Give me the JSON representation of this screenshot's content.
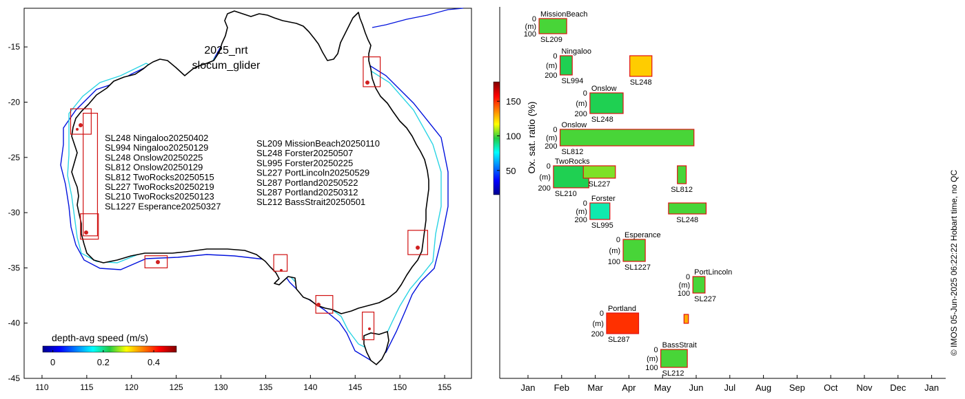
{
  "map": {
    "title_line1": "2025_nrt",
    "title_line2": "slocum_glider",
    "x_ticks": [
      "110",
      "115",
      "120",
      "125",
      "130",
      "135",
      "140",
      "145",
      "150",
      "155"
    ],
    "y_ticks": [
      "-15",
      "-20",
      "-25",
      "-30",
      "-35",
      "-40",
      "-45"
    ],
    "xlim": [
      108,
      158
    ],
    "ylim": [
      -45,
      -11.5
    ],
    "legend_left": [
      "SL248 Ningaloo20250402",
      "SL994 Ningaloo20250129",
      "SL248 Onslow20250225",
      "SL812 Onslow20250129",
      "SL812 TwoRocks20250515",
      "SL227 TwoRocks20250219",
      "SL210 TwoRocks20250123",
      "SL1227 Esperance20250327"
    ],
    "legend_right": [
      "SL209 MissionBeach20250110",
      "SL248 Forster20250507",
      "SL995 Forster20250225",
      "SL227 PortLincoln20250529",
      "SL287 Portland20250522",
      "SL287 Portland20250312",
      "SL212 BassStrait20250501"
    ],
    "colorbar": {
      "label": "depth-avg speed (m/s)",
      "ticks": [
        "0",
        "0.2",
        "0.4"
      ],
      "range": [
        -0.04,
        0.49
      ]
    },
    "deployment_boxes": [
      {
        "site": "Ningaloo",
        "lon": [
          113.2,
          115.5
        ],
        "lat": [
          -22.9,
          -20.6
        ]
      },
      {
        "site": "Onslow/TwoRocks track",
        "lon": [
          114.6,
          116.2
        ],
        "lat": [
          -32.1,
          -21.0
        ]
      },
      {
        "site": "TwoRocks",
        "lon": [
          114.3,
          116.3
        ],
        "lat": [
          -32.4,
          -30.1
        ]
      },
      {
        "site": "Esperance",
        "lon": [
          121.5,
          124.0
        ],
        "lat": [
          -35.0,
          -33.9
        ]
      },
      {
        "site": "PortLincoln",
        "lon": [
          135.9,
          137.4
        ],
        "lat": [
          -35.3,
          -33.8
        ]
      },
      {
        "site": "Portland",
        "lon": [
          140.6,
          142.5
        ],
        "lat": [
          -39.1,
          -37.5
        ]
      },
      {
        "site": "BassStrait",
        "lon": [
          145.8,
          147.1
        ],
        "lat": [
          -41.5,
          -39.0
        ]
      },
      {
        "site": "Forster",
        "lon": [
          150.9,
          153.1
        ],
        "lat": [
          -33.8,
          -31.6
        ]
      },
      {
        "site": "MissionBeach",
        "lon": [
          145.9,
          147.8
        ],
        "lat": [
          -18.6,
          -15.9
        ]
      }
    ]
  },
  "timeline": {
    "months": [
      "Jan",
      "Feb",
      "Mar",
      "Apr",
      "May",
      "Jun",
      "Jul",
      "Aug",
      "Sep",
      "Oct",
      "Nov",
      "Dec",
      "Jan"
    ],
    "colorbar": {
      "label": "Ox. sat. ratio (%)",
      "ticks": [
        "50",
        "100",
        "150"
      ],
      "range": [
        15,
        178
      ]
    },
    "credit": "© IMOS 05-Jun-2025 06:22:22 Hobart time, no QC",
    "panels": [
      {
        "site": "MissionBeach",
        "glider": "SL209",
        "ymax": "100",
        "start_day": 10,
        "end_day": 35,
        "level": 100
      },
      {
        "site": "Ningaloo",
        "glider": "SL994",
        "ymax": "200",
        "start_day": 29,
        "end_day": 40,
        "level": 95
      },
      {
        "site": "",
        "glider": "SL248",
        "ymax": "",
        "start_day": 92,
        "end_day": 112,
        "level": 125
      },
      {
        "site": "Onslow",
        "glider": "SL248",
        "ymax": "200",
        "start_day": 56,
        "end_day": 86,
        "level": 95
      },
      {
        "site": "Onslow",
        "glider": "SL812",
        "ymax": "200",
        "start_day": 29,
        "end_day": 150,
        "level": 100
      },
      {
        "site": "TwoRocks",
        "glider": "SL210",
        "ymax": "200",
        "start_day": 23,
        "end_day": 55,
        "level": 95
      },
      {
        "site": "",
        "glider": "SL227",
        "ymax": "",
        "start_day": 50,
        "end_day": 79,
        "level": 105
      },
      {
        "site": "",
        "glider": "SL812",
        "ymax": "",
        "start_day": 135,
        "end_day": 143,
        "level": 100
      },
      {
        "site": "Forster",
        "glider": "SL995",
        "ymax": "200",
        "start_day": 56,
        "end_day": 74,
        "level": 85
      },
      {
        "site": "",
        "glider": "SL248",
        "ymax": "",
        "start_day": 127,
        "end_day": 161,
        "level": 100
      },
      {
        "site": "Esperance",
        "glider": "SL1227",
        "ymax": "100",
        "start_day": 86,
        "end_day": 106,
        "level": 100
      },
      {
        "site": "PortLincoln",
        "glider": "SL227",
        "ymax": "100",
        "start_day": 149,
        "end_day": 160,
        "level": 100
      },
      {
        "site": "Portland",
        "glider": "SL287",
        "ymax": "200",
        "start_day": 71,
        "end_day": 100,
        "level": 150
      },
      {
        "site": "",
        "glider": "",
        "ymax": "",
        "start_day": 141,
        "end_day": 145,
        "level": 130
      },
      {
        "site": "BassStrait",
        "glider": "SL212",
        "ymax": "100",
        "start_day": 120,
        "end_day": 144,
        "level": 100
      }
    ]
  }
}
